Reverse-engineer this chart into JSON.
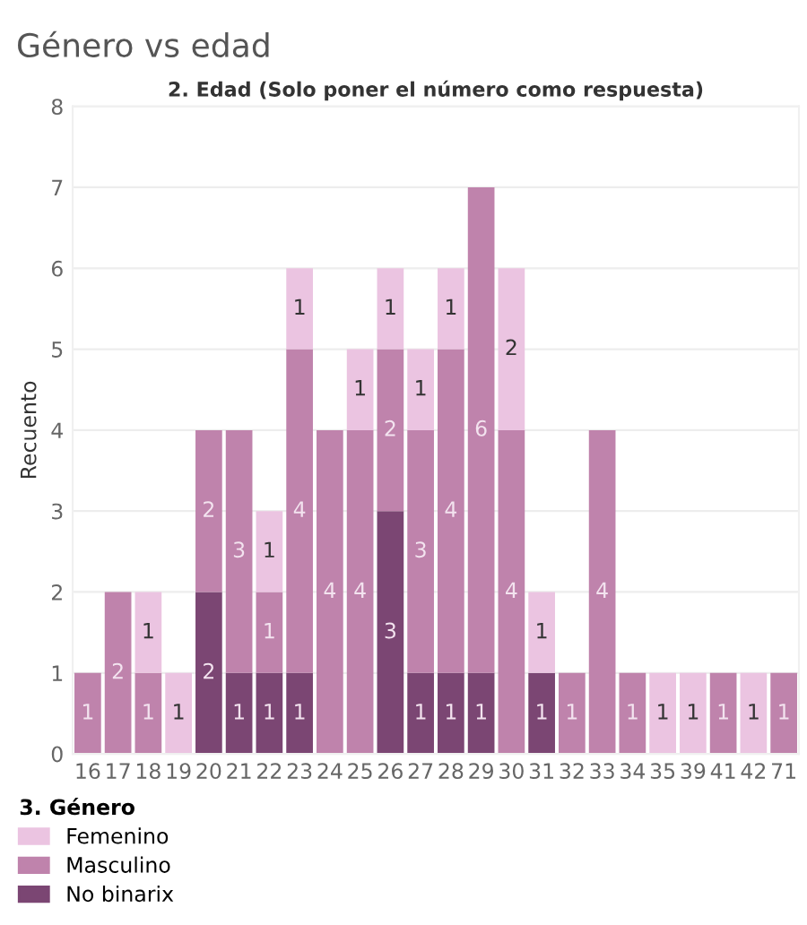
{
  "chart_data": {
    "type": "bar",
    "title": "Género vs edad",
    "xlabel": "2. Edad (Solo poner el número como respuesta)",
    "ylabel": "Recuento",
    "legend_title": "3. Género",
    "categories": [
      "16",
      "17",
      "18",
      "19",
      "20",
      "21",
      "22",
      "23",
      "24",
      "25",
      "26",
      "27",
      "28",
      "29",
      "30",
      "31",
      "32",
      "33",
      "34",
      "35",
      "39",
      "41",
      "42",
      "71"
    ],
    "stacked": true,
    "data_labels": true,
    "legend": "bottom left",
    "grid": "y",
    "ylim": [
      0,
      8
    ],
    "yticks": [
      0,
      1,
      2,
      3,
      4,
      5,
      6,
      7,
      8
    ],
    "series": [
      {
        "name": "No binarix",
        "color": "#7b4673",
        "values": [
          null,
          null,
          null,
          null,
          2,
          1,
          1,
          1,
          null,
          null,
          3,
          1,
          1,
          1,
          null,
          1,
          null,
          null,
          null,
          null,
          null,
          null,
          null,
          null
        ]
      },
      {
        "name": "Masculino",
        "color": "#bf83ac",
        "values": [
          1,
          2,
          1,
          null,
          2,
          3,
          1,
          4,
          4,
          4,
          2,
          3,
          4,
          6,
          4,
          null,
          1,
          4,
          1,
          null,
          null,
          1,
          null,
          1
        ]
      },
      {
        "name": "Femenino",
        "color": "#ebc4e1",
        "values": [
          null,
          null,
          1,
          1,
          null,
          null,
          1,
          1,
          null,
          1,
          1,
          1,
          1,
          null,
          2,
          1,
          null,
          null,
          null,
          1,
          1,
          null,
          1,
          null
        ]
      }
    ]
  }
}
